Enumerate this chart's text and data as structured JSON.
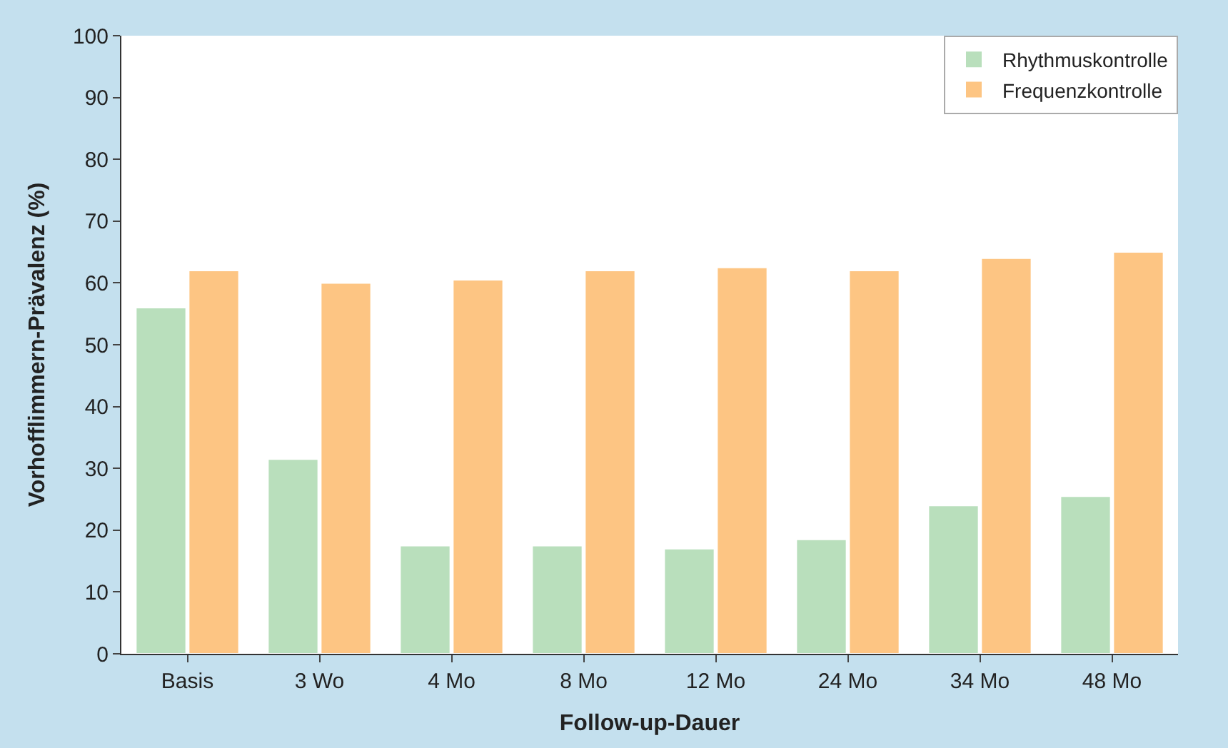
{
  "chart_data": {
    "type": "bar",
    "xlabel": "Follow-up-Dauer",
    "ylabel": "Vorhofflimmern-Prävalenz (%)",
    "categories": [
      "Basis",
      "3 Wo",
      "4 Mo",
      "8 Mo",
      "12 Mo",
      "24 Mo",
      "34 Mo",
      "48 Mo"
    ],
    "series": [
      {
        "name": "Rhythmuskontrolle",
        "color": "#b9dfbc",
        "values": [
          56,
          31.5,
          17.5,
          17.5,
          17,
          18.5,
          24,
          25.5
        ]
      },
      {
        "name": "Frequenzkontrolle",
        "color": "#fdc583",
        "values": [
          62,
          60,
          60.5,
          62,
          62.5,
          62,
          64,
          65
        ]
      }
    ],
    "ylim": [
      0,
      100
    ],
    "yticks": [
      0,
      10,
      20,
      30,
      40,
      50,
      60,
      70,
      80,
      90,
      100
    ],
    "legend": "top right"
  }
}
